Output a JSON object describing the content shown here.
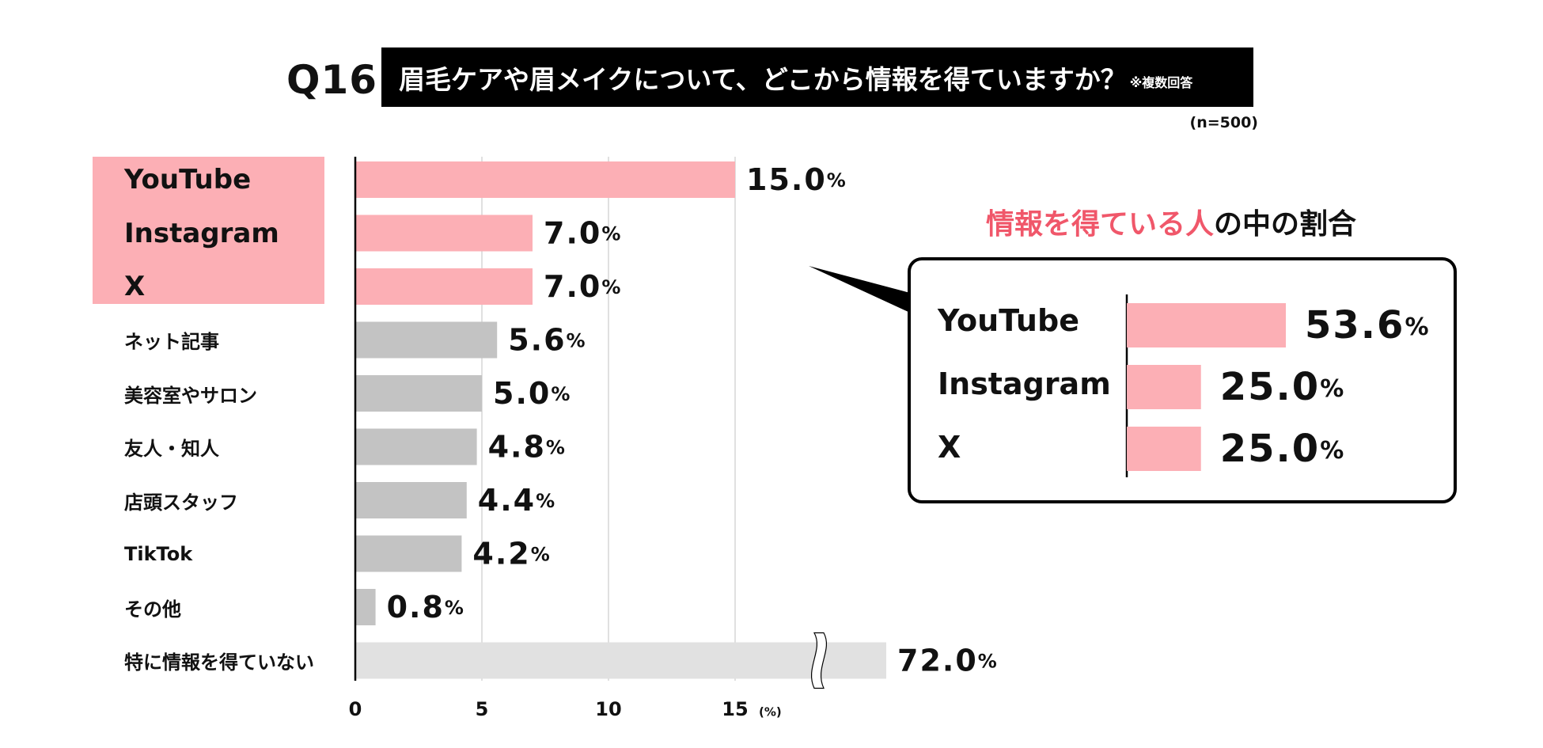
{
  "header": {
    "question_number": "Q16",
    "question_text": "眉毛ケアや眉メイクについて、どこから情報を得ていますか？",
    "question_note": "※複数回答",
    "sample_size": "(n=500)"
  },
  "colors": {
    "highlight": "#fcafb5",
    "other_bar": "#c3c3c3",
    "no_info_bar": "#e1e1e1",
    "accent_text": "#f0576a",
    "gridline": "#d5d5d5",
    "axis": "#000000"
  },
  "chart_data": [
    {
      "type": "bar",
      "orientation": "horizontal",
      "categories": [
        "YouTube",
        "Instagram",
        "X",
        "ネット記事",
        "美容室やサロン",
        "友人・知人",
        "店頭スタッフ",
        "TikTok",
        "その他",
        "特に情報を得ていない"
      ],
      "values": [
        15.0,
        7.0,
        7.0,
        5.6,
        5.0,
        4.8,
        4.4,
        4.2,
        0.8,
        72.0
      ],
      "value_labels": [
        "15.0",
        "7.0",
        "7.0",
        "5.6",
        "5.0",
        "4.8",
        "4.4",
        "4.2",
        "0.8",
        "72.0"
      ],
      "value_unit": "%",
      "highlighted_categories": [
        "YouTube",
        "Instagram",
        "X"
      ],
      "axis_break_category": "特に情報を得ていない",
      "xticks": [
        0,
        5,
        10,
        15
      ],
      "xunit": "(%)",
      "xlim": [
        0,
        15
      ],
      "grid": true
    },
    {
      "type": "bar",
      "orientation": "horizontal",
      "title_parts": [
        "情報を得ている人",
        "の中の割合"
      ],
      "categories": [
        "YouTube",
        "Instagram",
        "X"
      ],
      "values": [
        53.6,
        25.0,
        25.0
      ],
      "value_labels": [
        "53.6",
        "25.0",
        "25.0"
      ],
      "value_unit": "%",
      "xlim": [
        0,
        53.6
      ]
    }
  ]
}
